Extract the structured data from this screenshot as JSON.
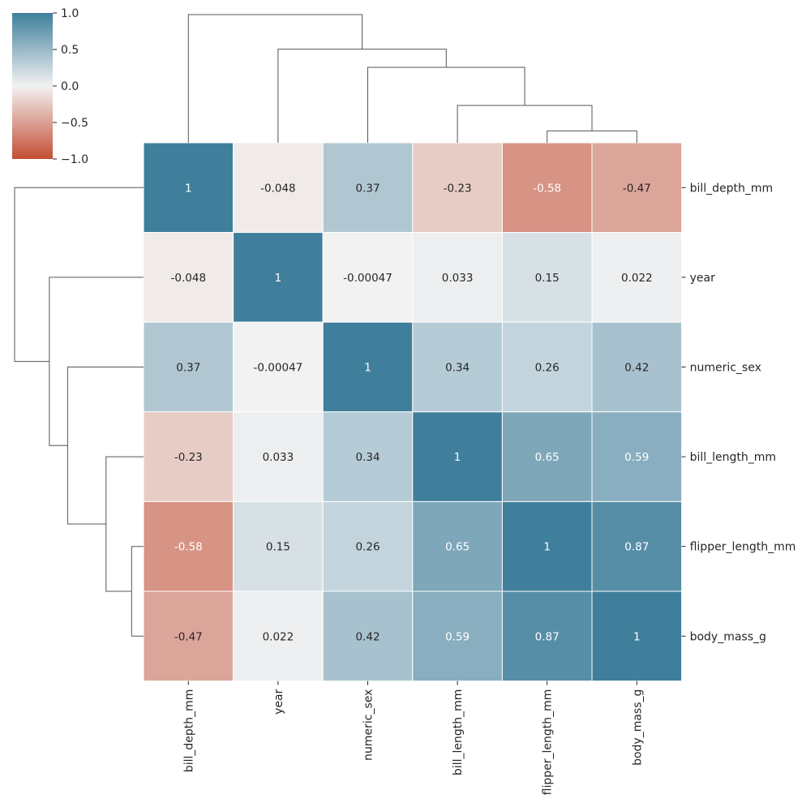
{
  "chart_data": {
    "type": "heatmap",
    "subtype": "clustermap",
    "labels": [
      "bill_depth_mm",
      "year",
      "numeric_sex",
      "bill_length_mm",
      "flipper_length_mm",
      "body_mass_g"
    ],
    "matrix": [
      [
        1,
        -0.048,
        0.37,
        -0.23,
        -0.58,
        -0.47
      ],
      [
        -0.048,
        1,
        -0.00047,
        0.033,
        0.15,
        0.022
      ],
      [
        0.37,
        -0.00047,
        1,
        0.34,
        0.26,
        0.42
      ],
      [
        -0.23,
        0.033,
        0.34,
        1,
        0.65,
        0.59
      ],
      [
        -0.58,
        0.15,
        0.26,
        0.65,
        1,
        0.87
      ],
      [
        -0.47,
        0.022,
        0.42,
        0.59,
        0.87,
        1
      ]
    ],
    "annotations": [
      [
        "1",
        "-0.048",
        "0.37",
        "-0.23",
        "-0.58",
        "-0.47"
      ],
      [
        "-0.048",
        "1",
        "-0.00047",
        "0.033",
        "0.15",
        "0.022"
      ],
      [
        "0.37",
        "-0.00047",
        "1",
        "0.34",
        "0.26",
        "0.42"
      ],
      [
        "-0.23",
        "0.033",
        "0.34",
        "1",
        "0.65",
        "0.59"
      ],
      [
        "-0.58",
        "0.15",
        "0.26",
        "0.65",
        "1",
        "0.87"
      ],
      [
        "-0.47",
        "0.022",
        "0.42",
        "0.59",
        "0.87",
        "1"
      ]
    ],
    "vmin": -1,
    "vmax": 1,
    "colormap": {
      "low": "#c44e34",
      "mid": "#f2f2f2",
      "high": "#3f7f9c"
    },
    "colorbar": {
      "ticks": [
        1.0,
        0.5,
        0.0,
        -0.5,
        -1.0
      ],
      "tick_labels": [
        "1.0",
        "0.5",
        "0.0",
        "−0.5",
        "−1.0"
      ]
    },
    "dendrogram": {
      "linkage": [
        {
          "left": "flipper_length_mm",
          "right": "body_mass_g",
          "height": 0.13
        },
        {
          "left": "bill_length_mm",
          "right": "flipper_length_mm+body_mass_g",
          "height": 0.41
        },
        {
          "left": "numeric_sex",
          "right": "bill_length_mm+flipper_length_mm+body_mass_g",
          "height": 0.83
        },
        {
          "left": "year",
          "right": "numeric_sex+bill_length_mm+flipper_length_mm+body_mass_g",
          "height": 1.03
        },
        {
          "left": "bill_depth_mm",
          "right": "rest",
          "height": 1.41
        }
      ]
    }
  }
}
